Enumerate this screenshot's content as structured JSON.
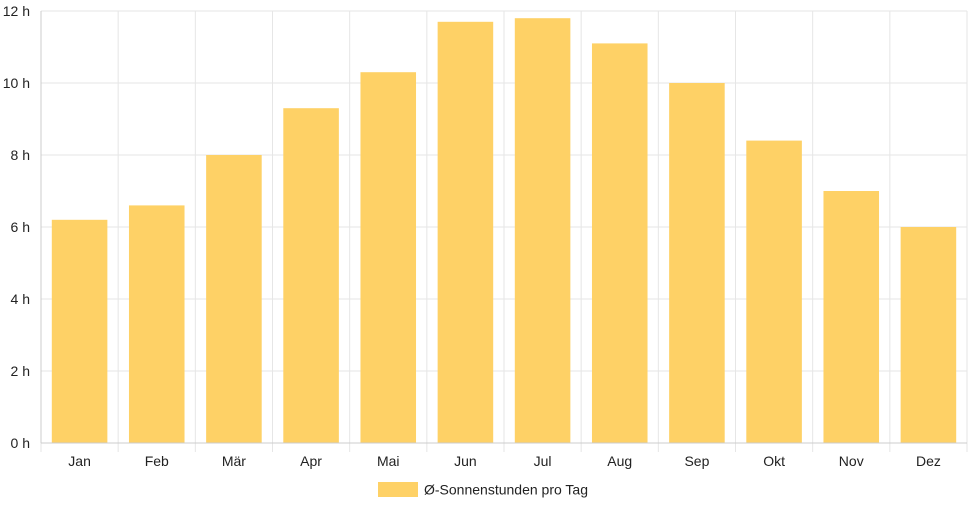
{
  "chart_data": {
    "type": "bar",
    "categories": [
      "Jan",
      "Feb",
      "Mär",
      "Apr",
      "Mai",
      "Jun",
      "Jul",
      "Aug",
      "Sep",
      "Okt",
      "Nov",
      "Dez"
    ],
    "series": [
      {
        "name": "Ø-Sonnenstunden pro Tag",
        "values": [
          6.2,
          6.6,
          8.0,
          9.3,
          10.3,
          11.7,
          11.8,
          11.1,
          10.0,
          8.4,
          7.0,
          6.0
        ],
        "color": "#fed166"
      }
    ],
    "ylim": [
      0,
      12
    ],
    "yticks": [
      0,
      2,
      4,
      6,
      8,
      10,
      12
    ],
    "ytick_suffix": " h",
    "grid": true,
    "legend_position": "bottom"
  }
}
